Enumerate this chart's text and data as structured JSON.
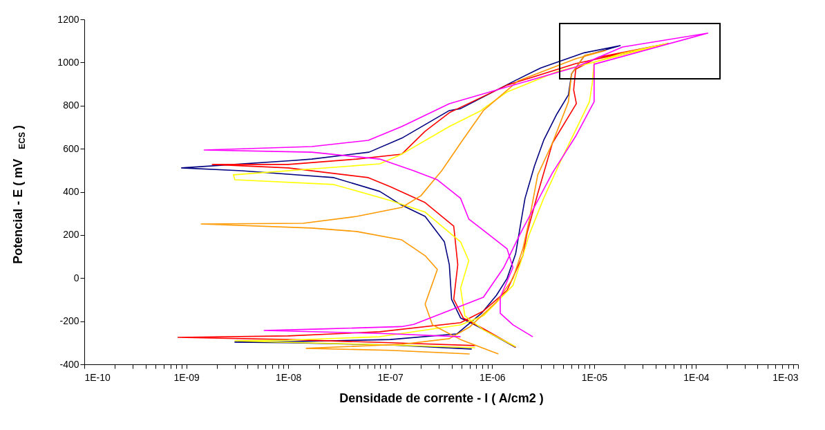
{
  "chart_data": {
    "type": "line",
    "xlabel": "Densidade de corrente - I ( A/cm2 )",
    "ylabel": "Potencial - E ( mV$_{ECS}$ )",
    "log": "x",
    "grid": false,
    "legend": false,
    "marker": "none",
    "line_style": "solid",
    "xlim": [
      1e-10,
      0.001
    ],
    "ylim": [
      -400,
      1200
    ],
    "yticks": [
      -400,
      -200,
      0,
      200,
      400,
      600,
      800,
      1000,
      1200
    ],
    "xticks": [
      {
        "value": 1e-10,
        "label": "1E-10"
      },
      {
        "value": 2e-10,
        "label": null
      },
      {
        "value": 3e-10,
        "label": null
      },
      {
        "value": 4e-10,
        "label": null
      },
      {
        "value": 5e-10,
        "label": null
      },
      {
        "value": 6e-10,
        "label": null
      },
      {
        "value": 7e-10,
        "label": null
      },
      {
        "value": 8e-10,
        "label": null
      },
      {
        "value": 9e-10,
        "label": null
      },
      {
        "value": 1e-09,
        "label": "1E-09"
      },
      {
        "value": 2e-09,
        "label": null
      },
      {
        "value": 3e-09,
        "label": null
      },
      {
        "value": 4e-09,
        "label": null
      },
      {
        "value": 5e-09,
        "label": null
      },
      {
        "value": 6e-09,
        "label": null
      },
      {
        "value": 7e-09,
        "label": null
      },
      {
        "value": 8e-09,
        "label": null
      },
      {
        "value": 9e-09,
        "label": null
      },
      {
        "value": 1e-08,
        "label": "1E-08"
      },
      {
        "value": 2e-08,
        "label": null
      },
      {
        "value": 3e-08,
        "label": null
      },
      {
        "value": 4e-08,
        "label": null
      },
      {
        "value": 5e-08,
        "label": null
      },
      {
        "value": 6e-08,
        "label": null
      },
      {
        "value": 7e-08,
        "label": null
      },
      {
        "value": 8e-08,
        "label": null
      },
      {
        "value": 9e-08,
        "label": null
      },
      {
        "value": 1e-07,
        "label": "1E-07"
      },
      {
        "value": 2e-07,
        "label": null
      },
      {
        "value": 3e-07,
        "label": null
      },
      {
        "value": 4e-07,
        "label": null
      },
      {
        "value": 5e-07,
        "label": null
      },
      {
        "value": 6e-07,
        "label": null
      },
      {
        "value": 7e-07,
        "label": null
      },
      {
        "value": 8e-07,
        "label": null
      },
      {
        "value": 9e-07,
        "label": null
      },
      {
        "value": 1e-06,
        "label": "1E-06"
      },
      {
        "value": 2e-06,
        "label": null
      },
      {
        "value": 3e-06,
        "label": null
      },
      {
        "value": 4e-06,
        "label": null
      },
      {
        "value": 5e-06,
        "label": null
      },
      {
        "value": 6e-06,
        "label": null
      },
      {
        "value": 7e-06,
        "label": null
      },
      {
        "value": 8e-06,
        "label": null
      },
      {
        "value": 9e-06,
        "label": null
      },
      {
        "value": 1e-05,
        "label": "1E-05"
      },
      {
        "value": 2e-05,
        "label": null
      },
      {
        "value": 3e-05,
        "label": null
      },
      {
        "value": 4e-05,
        "label": null
      },
      {
        "value": 5e-05,
        "label": null
      },
      {
        "value": 6e-05,
        "label": null
      },
      {
        "value": 7e-05,
        "label": null
      },
      {
        "value": 8e-05,
        "label": null
      },
      {
        "value": 9e-05,
        "label": null
      },
      {
        "value": 0.0001,
        "label": "1E-04"
      },
      {
        "value": 0.0002,
        "label": null
      },
      {
        "value": 0.0003,
        "label": null
      },
      {
        "value": 0.0004,
        "label": null
      },
      {
        "value": 0.0005,
        "label": null
      },
      {
        "value": 0.0006,
        "label": null
      },
      {
        "value": 0.0007,
        "label": null
      },
      {
        "value": 0.0008,
        "label": null
      },
      {
        "value": 0.0009,
        "label": null
      },
      {
        "value": 0.001,
        "label": "1E-03"
      }
    ],
    "series": [
      {
        "color": "#000080",
        "x": [
          6.3e-07,
          1e-07,
          1e-08,
          3e-09,
          1e-08,
          1e-07,
          4.5e-07,
          7.9e-07,
          1.1e-06,
          1.4e-06,
          1.7e-06,
          1.9e-06,
          2.1e-06,
          2.6e-06,
          3.2e-06,
          4.3e-06,
          5.6e-06,
          6e-06,
          8e-06,
          1.8e-05,
          8e-06,
          3e-06,
          1.6e-06,
          4.9e-07,
          3.8e-07,
          1.3e-07,
          6.2e-08,
          1.7e-08,
          1.1e-08,
          9e-10,
          3.5e-09,
          2.8e-08,
          7.9e-08,
          1.3e-07,
          2.2e-07,
          3.4e-07,
          3.8e-07,
          4e-07,
          4.9e-07,
          6.8e-07,
          1.7e-06
        ],
        "values": [
          -329,
          -310,
          -300,
          -297,
          -295,
          -285,
          -259,
          -162,
          -80,
          -2,
          113,
          250,
          370,
          520,
          639,
          760,
          850,
          947,
          1030,
          1078,
          1045,
          975,
          911,
          786,
          777,
          649,
          584,
          552,
          545,
          511,
          498,
          466,
          402,
          338,
          286,
          168,
          62,
          -98,
          -185,
          -217,
          -322
        ]
      },
      {
        "color": "#ff0000",
        "x": [
          6.8e-07,
          1e-07,
          1e-08,
          8.3e-10,
          1e-08,
          7.9e-08,
          4.9e-07,
          8.2e-07,
          1.4e-06,
          2e-06,
          2.2e-06,
          2.8e-06,
          3.9e-06,
          6.7e-06,
          6.3e-06,
          6.6e-06,
          1.1e-05,
          5.3e-05,
          6.6e-06,
          1.4e-06,
          4.6e-07,
          3.8e-07,
          2.2e-07,
          1.3e-07,
          4.7e-08,
          1e-08,
          1.8e-09,
          1e-08,
          6.1e-08,
          1e-07,
          2.2e-07,
          4.2e-07,
          4.6e-07,
          4.2e-07,
          5.2e-07,
          8.2e-07,
          1.7e-06
        ],
        "values": [
          -313,
          -300,
          -285,
          -275,
          -268,
          -249,
          -207,
          -153,
          -57,
          104,
          209,
          392,
          626,
          809,
          873,
          969,
          1024,
          1088,
          995,
          895,
          786,
          767,
          681,
          575,
          552,
          527,
          527,
          511,
          466,
          424,
          350,
          241,
          62,
          -98,
          -185,
          -235,
          -320
        ]
      },
      {
        "color": "#ffff00",
        "x": [
          6.8e-07,
          1e-07,
          1e-08,
          3e-09,
          1e-08,
          7.9e-08,
          4.9e-07,
          8.2e-07,
          1.6e-06,
          2e-06,
          2.3e-06,
          3.2e-06,
          4.7e-06,
          9e-06,
          9.6e-06,
          1e-05,
          1.9e-05,
          5.2e-05,
          4.4e-06,
          1.4e-06,
          8.2e-07,
          7.8e-07,
          3.8e-07,
          1.3e-07,
          7.9e-08,
          2.9e-09,
          3e-09,
          2.8e-08,
          1e-07,
          2.2e-07,
          4.9e-07,
          5.9e-07,
          4.9e-07,
          5.4e-07,
          8.2e-07,
          1.7e-06
        ],
        "values": [
          -323,
          -310,
          -298,
          -291,
          -288,
          -272,
          -217,
          -175,
          -34,
          104,
          200,
          370,
          543,
          818,
          905,
          1001,
          1043,
          1088,
          959,
          863,
          786,
          777,
          703,
          575,
          530,
          479,
          456,
          434,
          360,
          306,
          168,
          81,
          -47,
          -175,
          -240,
          -318
        ]
      },
      {
        "color": "#ff9900",
        "x": [
          6e-07,
          1e-07,
          1.5e-08,
          1.3e-07,
          3.8e-07,
          6e-07,
          1.1e-06,
          1.6e-06,
          2e-06,
          2.3e-06,
          2.8e-06,
          3.9e-06,
          5.6e-06,
          6e-06,
          8.1e-06,
          1.3e-05,
          6.6e-06,
          1.8e-06,
          8.2e-07,
          4.9e-07,
          3.2e-07,
          2e-07,
          1.3e-07,
          4.7e-08,
          1.4e-08,
          1.4e-09,
          1.7e-08,
          4.7e-08,
          1.3e-07,
          2.2e-07,
          2.9e-07,
          2.2e-07,
          2.6e-07,
          4.9e-07,
          1.15e-06
        ],
        "values": [
          -352,
          -335,
          -326,
          -307,
          -281,
          -227,
          -111,
          -2,
          136,
          264,
          479,
          626,
          818,
          947,
          1033,
          1056,
          1017,
          915,
          777,
          626,
          498,
          382,
          328,
          286,
          254,
          251,
          232,
          216,
          177,
          104,
          40,
          -121,
          -217,
          -285,
          -352
        ]
      },
      {
        "color": "#ff00ff",
        "x": [
          4.9e-07,
          1e-07,
          5.8e-09,
          2.1e-08,
          1.3e-07,
          1.7e-07,
          8.2e-07,
          1.3e-06,
          1.9e-06,
          3.9e-06,
          6.6e-06,
          1e-05,
          1e-05,
          1e-05,
          0.00013,
          1.9e-05,
          6.6e-06,
          3.8e-07,
          1.3e-07,
          6.1e-08,
          1.7e-08,
          1.5e-09,
          1.7e-08,
          7.9e-08,
          1.7e-07,
          2.9e-07,
          4.9e-07,
          5.9e-07,
          8.2e-07,
          1.4e-06,
          1.6e-06,
          1.2e-06,
          1.2e-06,
          1.6e-06,
          2.5e-06
        ],
        "values": [
          -272,
          -258,
          -243,
          -236,
          -225,
          -215,
          -89,
          49,
          209,
          488,
          658,
          818,
          905,
          992,
          1136,
          1072,
          979,
          809,
          703,
          639,
          610,
          594,
          584,
          552,
          498,
          456,
          370,
          274,
          222,
          136,
          49,
          -89,
          -163,
          -217,
          -272
        ]
      }
    ]
  }
}
